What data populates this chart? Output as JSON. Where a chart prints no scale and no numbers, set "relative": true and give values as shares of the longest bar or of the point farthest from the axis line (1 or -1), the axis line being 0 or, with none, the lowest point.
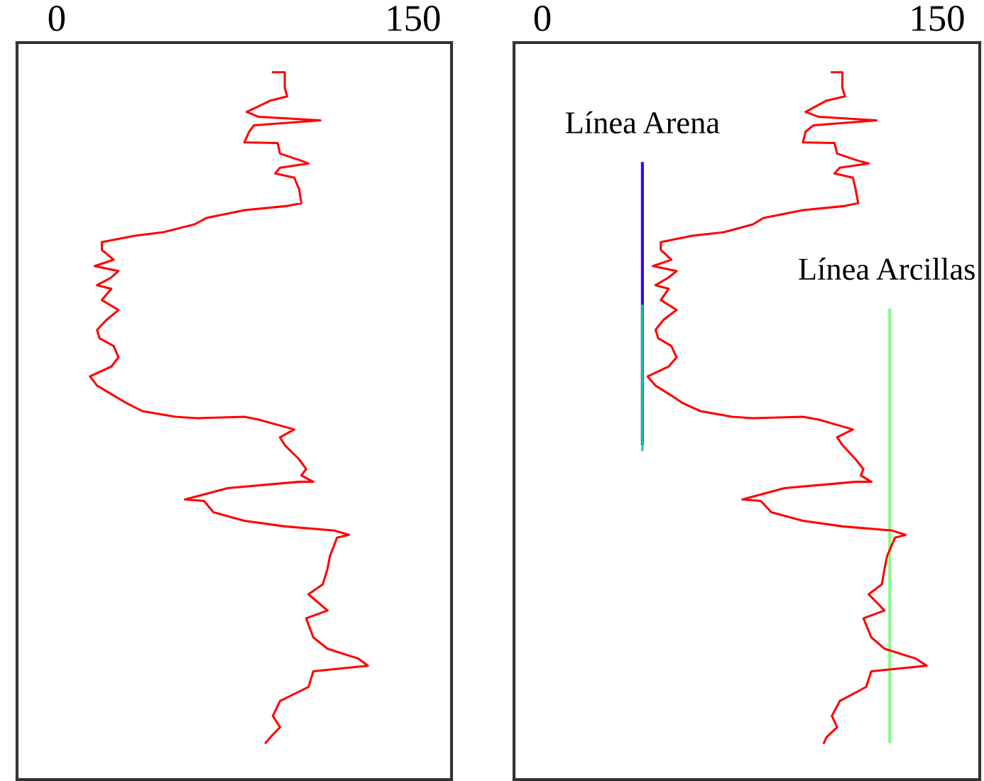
{
  "chart_data": [
    {
      "type": "line",
      "relative": true,
      "xlim": [
        -16.7,
        166.2
      ],
      "xticks": [
        0,
        150
      ],
      "tick_labels": "x",
      "grid": false,
      "legend": false,
      "series": [
        {
          "color": "#ff0000",
          "x": [
            91,
            96,
            96,
            97,
            90,
            80,
            85,
            111,
            83,
            81,
            79,
            93,
            94,
            103,
            106,
            94,
            92,
            100,
            102,
            103,
            97,
            79,
            63,
            58,
            45,
            33,
            19,
            19,
            24,
            16,
            26,
            23,
            17,
            23,
            19,
            26,
            21,
            17,
            18,
            24,
            26,
            23,
            14,
            17,
            24,
            29,
            36,
            50,
            59,
            79,
            85,
            100,
            94,
            96,
            102,
            105,
            103,
            108,
            102,
            72,
            54,
            62,
            66,
            79,
            96,
            117,
            123,
            118,
            115,
            114,
            112,
            106,
            114,
            105,
            108,
            114,
            127,
            131,
            108,
            106,
            94,
            91,
            94,
            90,
            88
          ],
          "values": [
            1.0,
            1.0,
            0.978,
            0.966,
            0.96,
            0.944,
            0.937,
            0.932,
            0.925,
            0.916,
            0.901,
            0.9,
            0.885,
            0.875,
            0.871,
            0.865,
            0.857,
            0.851,
            0.835,
            0.815,
            0.811,
            0.805,
            0.794,
            0.785,
            0.774,
            0.769,
            0.76,
            0.749,
            0.735,
            0.726,
            0.719,
            0.71,
            0.699,
            0.694,
            0.678,
            0.664,
            0.65,
            0.636,
            0.624,
            0.613,
            0.597,
            0.584,
            0.57,
            0.557,
            0.543,
            0.533,
            0.521,
            0.513,
            0.511,
            0.513,
            0.509,
            0.495,
            0.484,
            0.473,
            0.453,
            0.439,
            0.43,
            0.421,
            0.421,
            0.412,
            0.396,
            0.394,
            0.378,
            0.366,
            0.358,
            0.352,
            0.346,
            0.342,
            0.316,
            0.298,
            0.276,
            0.262,
            0.239,
            0.228,
            0.201,
            0.185,
            0.171,
            0.161,
            0.153,
            0.131,
            0.111,
            0.09,
            0.074,
            0.06,
            0.052
          ]
        }
      ]
    },
    {
      "type": "line",
      "relative": true,
      "xlim": [
        -10.8,
        166.2
      ],
      "xticks": [
        0,
        150
      ],
      "tick_labels": "x",
      "grid": false,
      "legend": false,
      "series": [
        {
          "name": "Línea Arena",
          "color": "#3300ff",
          "x": [
            38,
            38
          ],
          "values": [
            0.871,
            0.475
          ]
        },
        {
          "color": "#00d98a",
          "x": [
            38,
            38
          ],
          "values": [
            0.67,
            0.466
          ]
        },
        {
          "name": "Línea Arcillas",
          "color": "#88f888",
          "x": [
            132,
            132
          ],
          "values": [
            0.664,
            0.054
          ]
        },
        {
          "color": "#ff0000",
          "x": [
            110,
            114,
            114,
            115,
            108,
            100,
            105,
            127,
            103,
            100,
            99,
            111,
            112,
            120,
            124,
            113,
            111,
            118,
            119,
            120,
            115,
            99,
            84,
            80,
            69,
            57,
            45,
            45,
            49,
            42,
            51,
            48,
            43,
            48,
            45,
            51,
            46,
            43,
            44,
            49,
            51,
            48,
            40,
            43,
            49,
            53,
            60,
            72,
            80,
            99,
            105,
            118,
            112,
            114,
            119,
            122,
            121,
            125,
            119,
            92,
            76,
            83,
            87,
            99,
            114,
            133,
            138,
            134,
            131,
            130,
            129,
            124,
            130,
            122,
            125,
            130,
            142,
            146,
            125,
            123,
            113,
            110,
            112,
            108,
            107
          ],
          "values": [
            1.0,
            1.0,
            0.978,
            0.966,
            0.96,
            0.944,
            0.937,
            0.932,
            0.925,
            0.916,
            0.901,
            0.9,
            0.885,
            0.875,
            0.871,
            0.865,
            0.857,
            0.851,
            0.835,
            0.815,
            0.811,
            0.805,
            0.794,
            0.785,
            0.774,
            0.769,
            0.76,
            0.749,
            0.735,
            0.726,
            0.719,
            0.71,
            0.699,
            0.694,
            0.678,
            0.664,
            0.65,
            0.636,
            0.624,
            0.613,
            0.597,
            0.584,
            0.57,
            0.557,
            0.543,
            0.533,
            0.521,
            0.513,
            0.511,
            0.513,
            0.509,
            0.495,
            0.484,
            0.473,
            0.453,
            0.439,
            0.43,
            0.421,
            0.421,
            0.412,
            0.396,
            0.394,
            0.378,
            0.366,
            0.358,
            0.352,
            0.346,
            0.342,
            0.316,
            0.298,
            0.276,
            0.262,
            0.239,
            0.228,
            0.201,
            0.185,
            0.171,
            0.161,
            0.153,
            0.131,
            0.111,
            0.09,
            0.074,
            0.06,
            0.052
          ]
        }
      ]
    }
  ]
}
